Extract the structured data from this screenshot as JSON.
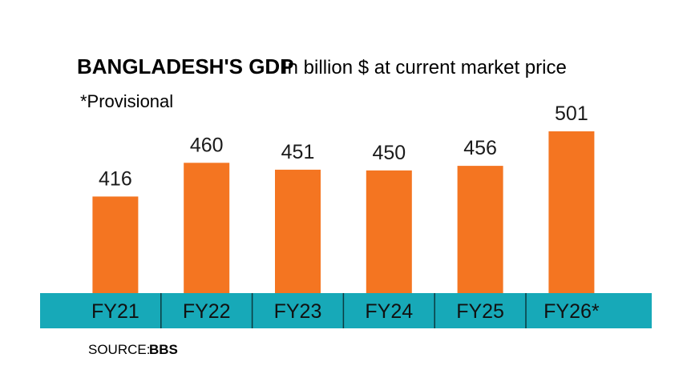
{
  "chart_data": {
    "type": "bar",
    "title": "BANGLADESH'S GDP",
    "subtitle": "In billion $ at current market price",
    "note": "*Provisional",
    "categories": [
      "FY21",
      "FY22",
      "FY23",
      "FY24",
      "FY25",
      "FY26*"
    ],
    "values": [
      416,
      460,
      451,
      450,
      456,
      501
    ],
    "ylim": [
      0,
      501
    ],
    "source_label": "SOURCE:",
    "source_name": "BBS",
    "bar_color": "#F47521",
    "band_color": "#17A9B8",
    "grid": false
  }
}
